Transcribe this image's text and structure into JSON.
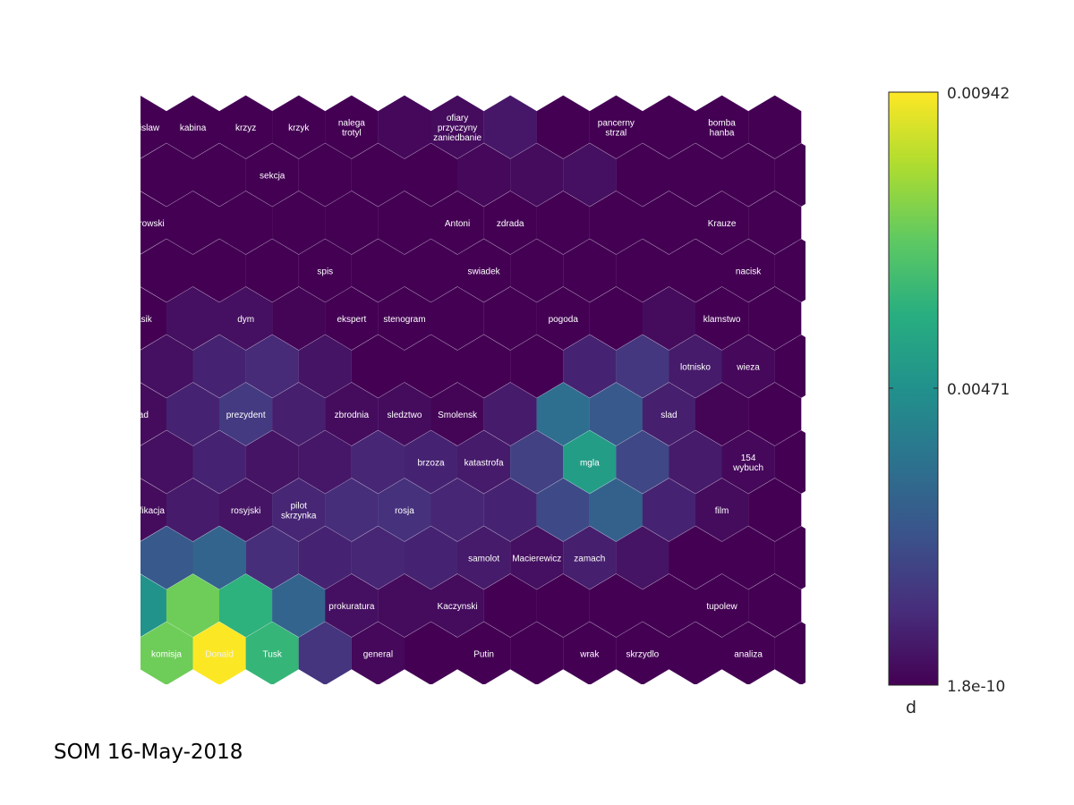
{
  "caption": "SOM 16-May-2018",
  "chart_data": {
    "type": "heatmap",
    "grid": "hexagonal",
    "rows": 12,
    "cols": 13,
    "colormap": "viridis",
    "colorbar": {
      "title": "d",
      "min": 1.8e-10,
      "mid": 0.00471,
      "max": 0.00942,
      "tick_labels": [
        "0.00942",
        "0.00471",
        "1.8e-10"
      ]
    },
    "values": [
      [
        0.0,
        0.0,
        0.0,
        0.0,
        0.0,
        0.0002,
        0.0003,
        0.0006,
        0.0,
        0.0,
        0.0,
        0.0,
        0.0
      ],
      [
        0.0,
        0.0,
        0.0,
        0.0,
        0.0,
        0.0,
        0.0002,
        0.0003,
        0.0004,
        0.0,
        0.0,
        0.0,
        0.0
      ],
      [
        0.0,
        0.0,
        0.0,
        0.0,
        0.0,
        0.0,
        0.0,
        0.0,
        0.0,
        0.0,
        0.0,
        0.0,
        0.0
      ],
      [
        0.0,
        0.0,
        0.0,
        0.0,
        0.0,
        0.0,
        0.0,
        0.0,
        0.0,
        0.0,
        0.0,
        0.0,
        0.0
      ],
      [
        0.0,
        0.0004,
        0.0004,
        0.0001,
        0.0,
        0.0,
        0.0,
        0.0,
        0.0,
        0.0,
        0.0003,
        0.0,
        0.0
      ],
      [
        0.0004,
        0.0009,
        0.0011,
        0.0005,
        0.0,
        0.0,
        0.0,
        0.0,
        0.0009,
        0.0015,
        0.0007,
        0.0002,
        0.0
      ],
      [
        0.0003,
        0.0009,
        0.0016,
        0.0008,
        0.0003,
        0.0003,
        0.0001,
        0.0007,
        0.0034,
        0.0026,
        0.0008,
        0.0001,
        0.0
      ],
      [
        0.0004,
        0.0009,
        0.0005,
        0.0006,
        0.001,
        0.0009,
        0.0007,
        0.0018,
        0.0052,
        0.002,
        0.0007,
        0.0002,
        0.0
      ],
      [
        0.0003,
        0.0007,
        0.0005,
        0.001,
        0.0012,
        0.0013,
        0.001,
        0.0009,
        0.0021,
        0.0029,
        0.0009,
        0.0003,
        0.0
      ],
      [
        0.0026,
        0.003,
        0.0012,
        0.0009,
        0.001,
        0.0009,
        0.0007,
        0.0004,
        0.0008,
        0.0005,
        0.0,
        0.0,
        0.0
      ],
      [
        0.0048,
        0.0073,
        0.006,
        0.003,
        0.0004,
        0.0003,
        0.0003,
        0.0,
        0.0,
        0.0,
        0.0,
        0.0,
        0.0
      ],
      [
        0.0073,
        0.0094,
        0.0062,
        0.0014,
        0.0002,
        0.0,
        0.0,
        0.0,
        0.0,
        0.0,
        0.0,
        0.0,
        0.0
      ]
    ],
    "labels": [
      {
        "row": 0,
        "col": 0,
        "text": [
          "Bronislaw"
        ]
      },
      {
        "row": 0,
        "col": 1,
        "text": [
          "kabina"
        ]
      },
      {
        "row": 0,
        "col": 2,
        "text": [
          "krzyz"
        ]
      },
      {
        "row": 0,
        "col": 3,
        "text": [
          "krzyk"
        ]
      },
      {
        "row": 0,
        "col": 4,
        "text": [
          "nalega",
          "trotyl"
        ]
      },
      {
        "row": 0,
        "col": 6,
        "text": [
          "ofiary",
          "przyczyny",
          "zaniedbanie"
        ]
      },
      {
        "row": 0,
        "col": 9,
        "text": [
          "pancerny",
          "strzal"
        ]
      },
      {
        "row": 0,
        "col": 11,
        "text": [
          "bomba",
          "hanba"
        ]
      },
      {
        "row": 1,
        "col": 2,
        "text": [
          "sekcja"
        ]
      },
      {
        "row": 2,
        "col": 0,
        "text": [
          "Komorowski"
        ]
      },
      {
        "row": 2,
        "col": 6,
        "text": [
          "Antoni"
        ]
      },
      {
        "row": 2,
        "col": 7,
        "text": [
          "zdrada"
        ]
      },
      {
        "row": 2,
        "col": 11,
        "text": [
          "Krauze"
        ]
      },
      {
        "row": 3,
        "col": 3,
        "text": [
          "spis"
        ]
      },
      {
        "row": 3,
        "col": 6,
        "text": [
          "swiadek"
        ]
      },
      {
        "row": 3,
        "col": 11,
        "text": [
          "nacisk"
        ]
      },
      {
        "row": 4,
        "col": 0,
        "text": [
          "Blasik"
        ]
      },
      {
        "row": 4,
        "col": 2,
        "text": [
          "dym"
        ]
      },
      {
        "row": 4,
        "col": 4,
        "text": [
          "ekspert"
        ]
      },
      {
        "row": 4,
        "col": 5,
        "text": [
          "stenogram"
        ]
      },
      {
        "row": 4,
        "col": 8,
        "text": [
          "pogoda"
        ]
      },
      {
        "row": 4,
        "col": 11,
        "text": [
          "klamstwo"
        ]
      },
      {
        "row": 5,
        "col": 10,
        "text": [
          "lotnisko"
        ]
      },
      {
        "row": 5,
        "col": 11,
        "text": [
          "wieza"
        ]
      },
      {
        "row": 6,
        "col": 0,
        "text": [
          "blad"
        ]
      },
      {
        "row": 6,
        "col": 2,
        "text": [
          "prezydent"
        ]
      },
      {
        "row": 6,
        "col": 4,
        "text": [
          "zbrodnia"
        ]
      },
      {
        "row": 6,
        "col": 5,
        "text": [
          "sledztwo"
        ]
      },
      {
        "row": 6,
        "col": 6,
        "text": [
          "Smolensk"
        ]
      },
      {
        "row": 6,
        "col": 10,
        "text": [
          "slad"
        ]
      },
      {
        "row": 7,
        "col": 5,
        "text": [
          "brzoza"
        ]
      },
      {
        "row": 7,
        "col": 6,
        "text": [
          "katastrofa"
        ]
      },
      {
        "row": 7,
        "col": 8,
        "text": [
          "mgla"
        ]
      },
      {
        "row": 7,
        "col": 11,
        "text": [
          "154",
          "wybuch"
        ]
      },
      {
        "row": 8,
        "col": 0,
        "text": [
          "identyfikacja"
        ]
      },
      {
        "row": 8,
        "col": 2,
        "text": [
          "rosyjski"
        ]
      },
      {
        "row": 8,
        "col": 3,
        "text": [
          "pilot",
          "skrzynka"
        ]
      },
      {
        "row": 8,
        "col": 5,
        "text": [
          "rosja"
        ]
      },
      {
        "row": 8,
        "col": 11,
        "text": [
          "film"
        ]
      },
      {
        "row": 9,
        "col": 6,
        "text": [
          "samolot"
        ]
      },
      {
        "row": 9,
        "col": 7,
        "text": [
          "Macierewicz"
        ]
      },
      {
        "row": 9,
        "col": 8,
        "text": [
          "zamach"
        ]
      },
      {
        "row": 10,
        "col": 4,
        "text": [
          "prokuratura"
        ]
      },
      {
        "row": 10,
        "col": 6,
        "text": [
          "Kaczynski"
        ]
      },
      {
        "row": 10,
        "col": 11,
        "text": [
          "tupolew"
        ]
      },
      {
        "row": 11,
        "col": 0,
        "text": [
          "komisja"
        ]
      },
      {
        "row": 11,
        "col": 1,
        "text": [
          "Donald"
        ]
      },
      {
        "row": 11,
        "col": 2,
        "text": [
          "Tusk"
        ]
      },
      {
        "row": 11,
        "col": 4,
        "text": [
          "general"
        ]
      },
      {
        "row": 11,
        "col": 6,
        "text": [
          "Putin"
        ]
      },
      {
        "row": 11,
        "col": 8,
        "text": [
          "wrak"
        ]
      },
      {
        "row": 11,
        "col": 9,
        "text": [
          "skrzydlo"
        ]
      },
      {
        "row": 11,
        "col": 11,
        "text": [
          "analiza"
        ]
      }
    ]
  }
}
